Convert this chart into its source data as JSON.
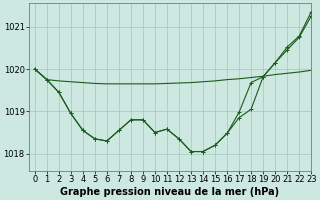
{
  "xlabel": "Graphe pression niveau de la mer (hPa)",
  "bg_color": "#cce8e0",
  "grid_color": "#99ccbb",
  "line_color": "#1a5c1a",
  "linewidth": 0.8,
  "markersize": 3,
  "ylim": [
    1017.6,
    1021.55
  ],
  "xlim": [
    -0.5,
    23
  ],
  "yticks": [
    1018,
    1019,
    1020,
    1021
  ],
  "xticks": [
    0,
    1,
    2,
    3,
    4,
    5,
    6,
    7,
    8,
    9,
    10,
    11,
    12,
    13,
    14,
    15,
    16,
    17,
    18,
    19,
    20,
    21,
    22,
    23
  ],
  "line1": [
    1020.0,
    1019.75,
    1019.72,
    1019.7,
    1019.68,
    1019.66,
    1019.65,
    1019.65,
    1019.65,
    1019.65,
    1019.65,
    1019.66,
    1019.67,
    1019.68,
    1019.7,
    1019.72,
    1019.75,
    1019.77,
    1019.8,
    1019.83,
    1019.87,
    1019.9,
    1019.93,
    1019.97
  ],
  "line2": [
    1020.0,
    1019.75,
    1019.45,
    1018.95,
    1018.55,
    1018.35,
    1018.3,
    1018.55,
    1018.8,
    1018.8,
    1018.5,
    1018.58,
    1018.35,
    1018.05,
    1018.05,
    1018.2,
    1018.48,
    1018.85,
    1019.05,
    1019.82,
    1020.15,
    1020.45,
    1020.75,
    1021.25
  ],
  "line3": [
    1020.0,
    1019.75,
    1019.45,
    1018.95,
    1018.55,
    1018.35,
    1018.3,
    1018.55,
    1018.8,
    1018.8,
    1018.5,
    1018.58,
    1018.35,
    1018.05,
    1018.05,
    1018.2,
    1018.48,
    1018.98,
    1019.68,
    1019.82,
    1020.15,
    1020.52,
    1020.78,
    1021.35
  ],
  "xlabel_fontsize": 7,
  "tick_fontsize": 6,
  "spine_color": "#666666"
}
